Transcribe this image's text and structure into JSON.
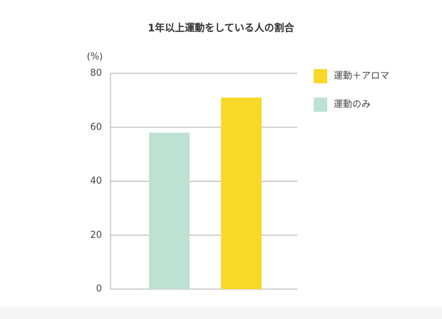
{
  "chart_data": {
    "type": "bar",
    "title": "1年以上運動をしている人の割合",
    "y_label": "(%)",
    "categories": [
      null,
      null
    ],
    "series": [
      {
        "name": "運動＋アロマ",
        "color": "#f9d928",
        "values": [
          null,
          71
        ]
      },
      {
        "name": "運動のみ",
        "color": "#bde2d2",
        "values": [
          58,
          null
        ]
      }
    ],
    "ylim": [
      0,
      80
    ],
    "yticks": [
      0,
      20,
      40,
      60,
      80
    ],
    "grid": true,
    "legend": "right"
  }
}
